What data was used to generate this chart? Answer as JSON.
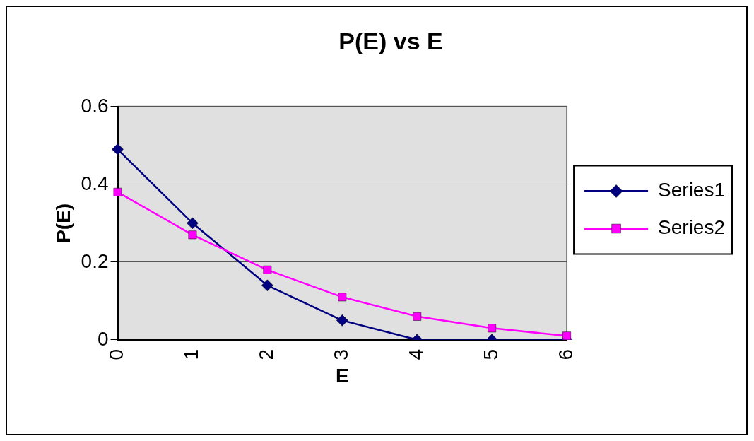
{
  "chart_data": {
    "type": "line",
    "title": "P(E) vs E",
    "xlabel": "E",
    "ylabel": "P(E)",
    "categories": [
      "0",
      "1",
      "2",
      "3",
      "4",
      "5",
      "6"
    ],
    "series": [
      {
        "name": "Series1",
        "color": "#000080",
        "marker": "diamond",
        "values": [
          0.49,
          0.3,
          0.14,
          0.05,
          0,
          0,
          0
        ]
      },
      {
        "name": "Series2",
        "color": "#ff00ff",
        "marker": "square",
        "values": [
          0.38,
          0.27,
          0.18,
          0.11,
          0.06,
          0.03,
          0.01
        ]
      }
    ],
    "ylim": [
      0,
      0.6
    ],
    "yticks": [
      0,
      0.2,
      0.4,
      0.6
    ],
    "grid": "y",
    "legend": "right"
  }
}
